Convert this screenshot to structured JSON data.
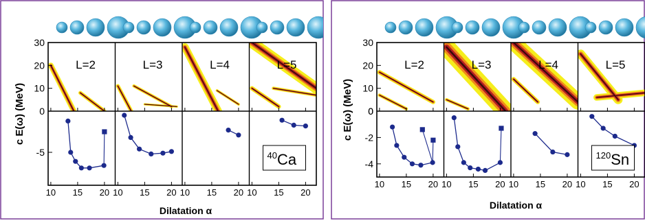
{
  "colors": {
    "frame": "#7a3f98",
    "contour_outer": "#f5ee1c",
    "contour_mid": "#f08a1a",
    "contour_inner": "#b41e24",
    "contour_core": "#3a0a0a",
    "curve": "#1c2a8c",
    "nucleus_ball": "#5ab8df"
  },
  "chart_data": [
    {
      "type": "line",
      "nucleus_label": {
        "pre": "40",
        "main": "Ca"
      },
      "ylabel": "c E(ω)  (MeV)",
      "xlabel": "Dilatation α",
      "xlim": [
        9.5,
        22
      ],
      "top_ylim": [
        0,
        30
      ],
      "top_yticks": [
        "0",
        "10",
        "20",
        "30"
      ],
      "bottom_ylim": [
        -9,
        0
      ],
      "bottom_yticks": [
        "-5"
      ],
      "xticks": [
        "10",
        "15",
        "20"
      ],
      "panels": [
        {
          "label": "L=2",
          "series_circles": {
            "x": [
              13.2,
              13.7,
              14.6,
              15.7,
              17.2,
              19.9
            ],
            "y": [
              -1.2,
              -5.0,
              -6.1,
              -6.9,
              -6.9,
              -6.6
            ]
          },
          "series_squares": {
            "x": [
              20.0
            ],
            "y": [
              -2.5
            ]
          },
          "contour_bands": [
            {
              "x1": 10,
              "y1": 20,
              "x2": 14.3,
              "y2": 0,
              "w": 5
            },
            {
              "x1": 15.5,
              "y1": 8,
              "x2": 20,
              "y2": 0,
              "w": 3.5
            }
          ]
        },
        {
          "label": "L=3",
          "series_circles": {
            "x": [
              11.2,
              12.4,
              14.0,
              16.2,
              18.4,
              20.0
            ],
            "y": [
              -0.5,
              -3.2,
              -4.6,
              -5.2,
              -5.1,
              -4.9
            ]
          },
          "series_squares": {
            "x": [],
            "y": []
          },
          "contour_bands": [
            {
              "x1": 10,
              "y1": 11,
              "x2": 12.5,
              "y2": 0,
              "w": 3.5
            },
            {
              "x1": 13,
              "y1": 11,
              "x2": 20,
              "y2": 2,
              "w": 3
            },
            {
              "x1": 15,
              "y1": 3,
              "x2": 21,
              "y2": 2,
              "w": 2
            }
          ]
        },
        {
          "label": "L=4",
          "series_circles": {
            "x": [
              18.1,
              20.0
            ],
            "y": [
              -2.3,
              -2.9
            ]
          },
          "series_squares": {
            "x": [],
            "y": []
          },
          "contour_bands": [
            {
              "x1": 10,
              "y1": 28,
              "x2": 16.2,
              "y2": 0,
              "w": 7
            },
            {
              "x1": 16,
              "y1": 9,
              "x2": 20,
              "y2": 3,
              "w": 2.5
            }
          ]
        },
        {
          "label": "L=5",
          "series_circles": {
            "x": [
              15.6,
              17.8,
              20.0
            ],
            "y": [
              -1.1,
              -1.7,
              -1.8
            ]
          },
          "series_squares": {
            "x": [],
            "y": []
          },
          "contour_bands": [
            {
              "x1": 10,
              "y1": 30,
              "x2": 22,
              "y2": 10,
              "w": 10
            },
            {
              "x1": 10,
              "y1": 10,
              "x2": 15,
              "y2": 2,
              "w": 4
            },
            {
              "x1": 14,
              "y1": 10,
              "x2": 22,
              "y2": 7,
              "w": 3
            }
          ]
        }
      ]
    },
    {
      "type": "line",
      "nucleus_label": {
        "pre": "120",
        "main": "Sn"
      },
      "ylabel": "c E(ω)  (MeV)",
      "xlabel": "Dilatation α",
      "xlim": [
        9.5,
        22
      ],
      "top_ylim": [
        0,
        30
      ],
      "top_yticks": [
        "0",
        "10",
        "20",
        "30"
      ],
      "bottom_ylim": [
        -5,
        0
      ],
      "bottom_yticks": [
        "0",
        "-2",
        "-4"
      ],
      "xticks": [
        "10",
        "15",
        "20"
      ],
      "panels": [
        {
          "label": "L=2",
          "series_circles": {
            "x": [
              12.4,
              13.2,
              14.6,
              16.1,
              17.7,
              19.9
            ],
            "y": [
              -1.2,
              -2.6,
              -3.5,
              -4.0,
              -4.1,
              -3.9
            ]
          },
          "series_squares": {
            "x": [
              18.0,
              20.0
            ],
            "y": [
              -1.4,
              -2.2
            ]
          },
          "contour_bands": [
            {
              "x1": 10,
              "y1": 17,
              "x2": 20,
              "y2": 4,
              "w": 4
            },
            {
              "x1": 10,
              "y1": 7,
              "x2": 15,
              "y2": 1,
              "w": 3
            }
          ]
        },
        {
          "label": "L=3",
          "series_circles": {
            "x": [
              11.4,
              12.1,
              13.2,
              14.4,
              15.9,
              17.2,
              20.0
            ],
            "y": [
              -0.5,
              -2.7,
              -3.9,
              -4.3,
              -4.4,
              -4.5,
              -3.9
            ]
          },
          "series_squares": {
            "x": [
              20.2
            ],
            "y": [
              -1.3
            ]
          },
          "contour_bands": [
            {
              "x1": 10,
              "y1": 28,
              "x2": 21,
              "y2": 0,
              "w": 16
            },
            {
              "x1": 10,
              "y1": 5,
              "x2": 14,
              "y2": 1,
              "w": 3
            }
          ]
        },
        {
          "label": "L=4",
          "series_circles": {
            "x": [
              14.0,
              17.3,
              20.0
            ],
            "y": [
              -1.7,
              -3.1,
              -3.3
            ]
          },
          "series_squares": {
            "x": [],
            "y": []
          },
          "contour_bands": [
            {
              "x1": 10,
              "y1": 30,
              "x2": 22,
              "y2": 4,
              "w": 14
            },
            {
              "x1": 10,
              "y1": 14,
              "x2": 14.5,
              "y2": 4,
              "w": 4
            }
          ]
        },
        {
          "label": "L=5",
          "series_circles": {
            "x": [
              12.1,
              14.2,
              16.4,
              20.0
            ],
            "y": [
              -0.4,
              -1.3,
              -1.9,
              -2.6
            ]
          },
          "series_squares": {
            "x": [],
            "y": []
          },
          "contour_bands": [
            {
              "x1": 10,
              "y1": 25,
              "x2": 17,
              "y2": 5,
              "w": 8
            },
            {
              "x1": 13,
              "y1": 6,
              "x2": 22,
              "y2": 8,
              "w": 6
            }
          ]
        }
      ]
    }
  ]
}
